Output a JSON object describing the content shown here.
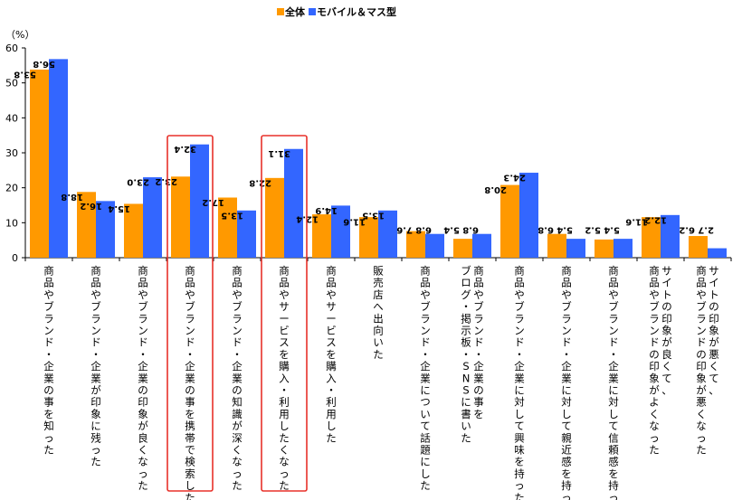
{
  "colors": {
    "all": "#ff9900",
    "mobile": "#3366ff",
    "highlight": "#e8312a"
  },
  "chart_data": {
    "type": "bar",
    "unit_label": "（%）",
    "ylim": [
      0,
      60
    ],
    "yticks": [
      0,
      10,
      20,
      30,
      40,
      50,
      60
    ],
    "grid": false,
    "legend_position": "top-center",
    "categories": [
      "商品やブランド・企業の事を知った",
      "商品やブランド・企業が印象に残った",
      "商品やブランド・企業の印象が良くなった",
      "商品やブランド・企業の事を携帯で検索した",
      "商品やブランド・企業の知識が深くなった",
      "商品やサービスを購入・利用したくなった",
      "商品やサービスを購入・利用した",
      "販売店へ出向いた",
      "商品やブランド・企業について話題にした",
      [
        "商品やブランド・企業の事を",
        "ブログ・掲示板・SNSに書いた"
      ],
      "商品やブランド・企業に対して興味を持った",
      "商品やブランド・企業に対して親近感を持った",
      "商品やブランド・企業に対して信頼感を持った",
      [
        "サイトの印象が良くて、",
        "商品やブランドの印象がよくなった"
      ],
      [
        "サイトの印象が悪くて、",
        "商品やブランドの印象が悪くなった"
      ]
    ],
    "series": [
      {
        "name": "全体",
        "values": [
          53.8,
          18.8,
          15.4,
          23.2,
          17.2,
          22.8,
          12.4,
          11.6,
          7.6,
          5.4,
          20.8,
          6.8,
          5.2,
          11.6,
          6.2
        ],
        "labels": [
          "53.8",
          "18.8",
          "15.4",
          "23.2",
          "17.2",
          "22.8",
          "12.4",
          "11.6",
          "7.6",
          "5.4",
          "20.8",
          "6.8",
          "5.2",
          "11.6",
          "6.2"
        ]
      },
      {
        "name": "モバイル＆マス型",
        "values": [
          56.8,
          16.2,
          23.0,
          32.4,
          13.5,
          31.1,
          14.9,
          13.5,
          6.8,
          6.8,
          24.3,
          5.4,
          5.4,
          12.2,
          2.7
        ],
        "labels": [
          "56.8",
          "16.2",
          "23.0",
          "32.4",
          "13.5",
          "31.1",
          "14.9",
          "13.5",
          "6.8",
          "6.8",
          "24.3",
          "5.4",
          "5.4",
          "12.2",
          "2.7"
        ]
      }
    ],
    "highlighted_categories": [
      3,
      5
    ]
  }
}
